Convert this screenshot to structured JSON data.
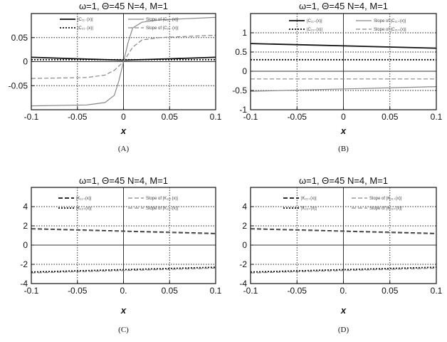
{
  "chart_data": [
    {
      "type": "line",
      "title": "ω=1, Θ=45 N=4, M=1",
      "xlabel": "x",
      "ylabel": "",
      "caption": "(A)",
      "xlim": [
        -0.1,
        0.1
      ],
      "ylim": [
        -0.1,
        0.1
      ],
      "grid": "dotted",
      "legend_position": "top",
      "x_ticks": [
        "-0.1",
        "-0.05",
        "0",
        "0.05",
        "0.1"
      ],
      "y_ticks": [
        "-0.05",
        "0",
        "0.05"
      ],
      "y_tick_values": [
        -0.05,
        0,
        0.05
      ],
      "series": [
        {
          "name": "|C₁₁₋(x)|",
          "style": "solid",
          "color": "#111111",
          "width": 1.8,
          "x": [
            -0.1,
            -0.05,
            0,
            0.05,
            0.1
          ],
          "y": [
            0.009,
            0.006,
            0.003,
            0.006,
            0.009
          ]
        },
        {
          "name": "Slope of |C₁₁₋(x)|",
          "style": "solid",
          "color": "#888888",
          "width": 1.2,
          "x": [
            -0.1,
            -0.04,
            -0.02,
            -0.01,
            -0.005,
            0,
            0.005,
            0.01,
            0.02,
            0.04,
            0.1
          ],
          "y": [
            -0.092,
            -0.09,
            -0.085,
            -0.07,
            -0.04,
            0,
            0.04,
            0.07,
            0.082,
            0.087,
            0.092
          ]
        },
        {
          "name": "|C₂₁₋(x)|",
          "style": "dotted",
          "color": "#111111",
          "width": 1.8,
          "x": [
            -0.1,
            -0.05,
            0,
            0.05,
            0.1
          ],
          "y": [
            0.004,
            0.004,
            0.004,
            0.004,
            0.004
          ]
        },
        {
          "name": "Slope of |C₂₁₋(x)|",
          "style": "dashed",
          "color": "#888888",
          "width": 1.2,
          "x": [
            -0.1,
            -0.04,
            -0.02,
            -0.01,
            0,
            0.01,
            0.02,
            0.04,
            0.1
          ],
          "y": [
            -0.035,
            -0.033,
            -0.028,
            -0.018,
            0,
            0.03,
            0.045,
            0.05,
            0.055
          ]
        }
      ]
    },
    {
      "type": "line",
      "title": "ω=1, Θ=45 N=4, M=1",
      "xlabel": "x",
      "ylabel": "",
      "caption": "(B)",
      "xlim": [
        -0.1,
        0.1
      ],
      "ylim": [
        -1,
        1.5
      ],
      "grid": "dotted",
      "legend_position": "top",
      "x_ticks": [
        "-0.1",
        "-0.05",
        "0",
        "0.05",
        "0.1"
      ],
      "y_ticks": [
        "-1",
        "-0.5",
        "0",
        "0.5",
        "1"
      ],
      "y_tick_values": [
        -1,
        -0.5,
        0,
        0.5,
        1
      ],
      "series": [
        {
          "name": "|C₁₁₊(x)|",
          "style": "solid",
          "color": "#111111",
          "width": 1.8,
          "x": [
            -0.1,
            0.1
          ],
          "y": [
            0.72,
            0.6
          ]
        },
        {
          "name": "Slope of |C₁₁₊(x)|",
          "style": "solid",
          "color": "#888888",
          "width": 1.2,
          "x": [
            -0.1,
            0.1
          ],
          "y": [
            -0.52,
            -0.4
          ]
        },
        {
          "name": "|C₂₁₊(x)|",
          "style": "dotted",
          "color": "#111111",
          "width": 1.8,
          "x": [
            -0.1,
            0.1
          ],
          "y": [
            0.3,
            0.3
          ]
        },
        {
          "name": "Slope of |C₂₁₊(x)|",
          "style": "dashed",
          "color": "#888888",
          "width": 1.2,
          "x": [
            -0.1,
            0.1
          ],
          "y": [
            -0.2,
            -0.2
          ]
        }
      ]
    },
    {
      "type": "line",
      "title": "ω=1, Θ=45 N=4, M=1",
      "xlabel": "x",
      "ylabel": "",
      "caption": "(C)",
      "xlim": [
        -0.1,
        0.1
      ],
      "ylim": [
        -4,
        6
      ],
      "grid": "dotted",
      "legend_position": "top",
      "x_ticks": [
        "-0.1",
        "-0.05",
        "0.",
        "0.05",
        "0.1"
      ],
      "y_ticks": [
        "-4",
        "-2",
        "0",
        "2",
        "4"
      ],
      "y_tick_values": [
        -4,
        -2,
        0,
        2,
        4
      ],
      "series": [
        {
          "name": "|K₁₁₊(x)|",
          "style": "dashed",
          "color": "#111111",
          "width": 1.8,
          "x": [
            -0.1,
            0.1
          ],
          "y": [
            1.7,
            1.2
          ]
        },
        {
          "name": "Slope of |K₁₁₊(x)|",
          "style": "dashed",
          "color": "#888888",
          "width": 1.2,
          "x": [
            -0.1,
            0.1
          ],
          "y": [
            1.65,
            1.15
          ]
        },
        {
          "name": "|K₁₂₊(x)|",
          "style": "dotted",
          "color": "#111111",
          "width": 1.8,
          "x": [
            -0.1,
            0.1
          ],
          "y": [
            -2.8,
            -2.3
          ]
        },
        {
          "name": "Slope of |K₁₂₊(x)|",
          "style": "dashed",
          "color": "#888888",
          "width": 1.2,
          "x": [
            -0.1,
            0.1
          ],
          "y": [
            -2.9,
            -2.4
          ]
        }
      ]
    },
    {
      "type": "line",
      "title": "ω=1, Θ=45 N=4, M=1",
      "xlabel": "x",
      "ylabel": "",
      "caption": "(D)",
      "xlim": [
        -0.1,
        0.1
      ],
      "ylim": [
        -4,
        6
      ],
      "grid": "dotted",
      "legend_position": "top",
      "x_ticks": [
        "-0.1",
        "-0.05",
        "0.",
        "0.05",
        "0.1"
      ],
      "y_ticks": [
        "-4",
        "-2",
        "0",
        "2",
        "4"
      ],
      "y_tick_values": [
        -4,
        -2,
        0,
        2,
        4
      ],
      "series": [
        {
          "name": "|K₂₁₊(x)|",
          "style": "dashed",
          "color": "#111111",
          "width": 1.8,
          "x": [
            -0.1,
            0.1
          ],
          "y": [
            1.7,
            1.2
          ]
        },
        {
          "name": "Slope of |K₂₁₊(x)|",
          "style": "dashed",
          "color": "#888888",
          "width": 1.2,
          "x": [
            -0.1,
            0.1
          ],
          "y": [
            1.65,
            1.15
          ]
        },
        {
          "name": "|K₂₂₊(x)|",
          "style": "dotted",
          "color": "#111111",
          "width": 1.8,
          "x": [
            -0.1,
            0.1
          ],
          "y": [
            -2.8,
            -2.3
          ]
        },
        {
          "name": "Slope of |K₂₂₊(x)|",
          "style": "dashed",
          "color": "#888888",
          "width": 1.2,
          "x": [
            -0.1,
            0.1
          ],
          "y": [
            -2.9,
            -2.4
          ]
        }
      ]
    }
  ]
}
